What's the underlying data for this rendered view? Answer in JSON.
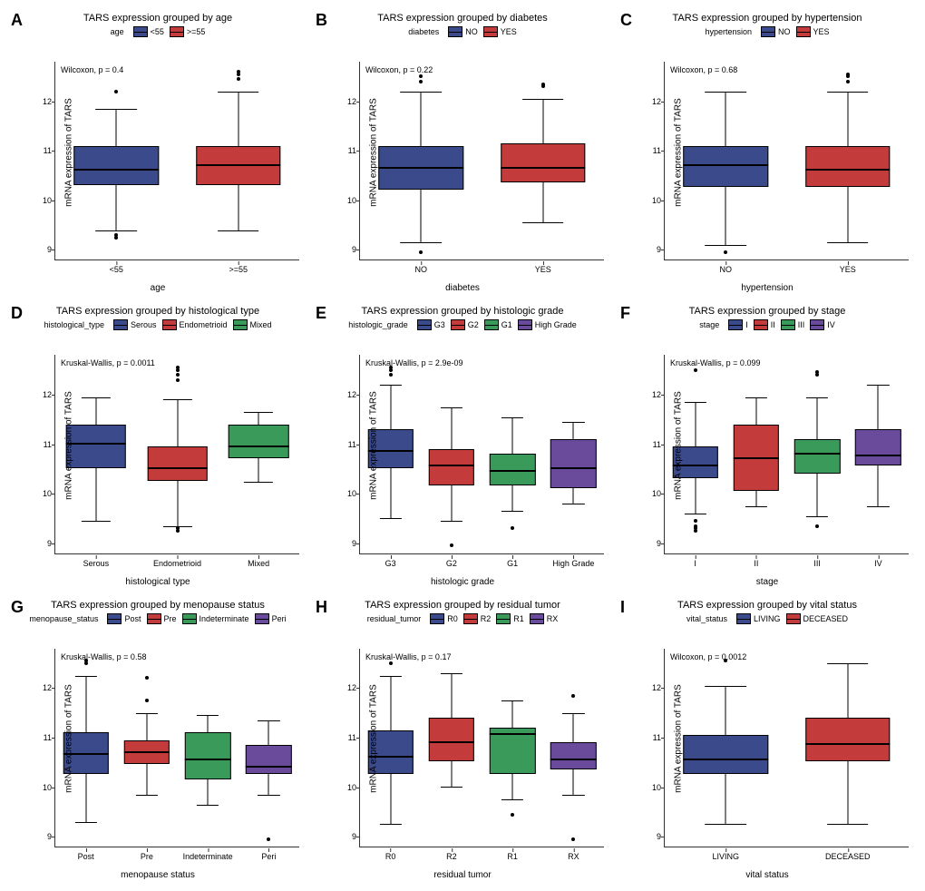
{
  "colors": {
    "c1": "#3a4a8a",
    "c2": "#c43b3b",
    "c3": "#3a9a5a",
    "c4": "#6a4a9a"
  },
  "ylabel": "mRNA expression of TARS",
  "ylim": [
    8.8,
    12.8
  ],
  "yticks": [
    9,
    10,
    11,
    12
  ],
  "panels": [
    {
      "letter": "A",
      "title": "TARS expression grouped by age",
      "legend_label": "age",
      "xlabel": "age",
      "stat": "Wilcoxon, p = 0.4",
      "groups": [
        {
          "label": "<55",
          "color": "c1",
          "q1": 10.35,
          "med": 10.65,
          "q3": 11.1,
          "lw": 9.4,
          "uw": 11.85,
          "out": [
            9.25,
            9.3,
            12.2
          ]
        },
        {
          "label": ">=55",
          "color": "c2",
          "q1": 10.35,
          "med": 10.75,
          "q3": 11.1,
          "lw": 9.4,
          "uw": 12.2,
          "out": [
            12.45,
            12.55,
            12.6
          ]
        }
      ]
    },
    {
      "letter": "B",
      "title": "TARS expression grouped by diabetes",
      "legend_label": "diabetes",
      "xlabel": "diabetes",
      "stat": "Wilcoxon, p = 0.22",
      "groups": [
        {
          "label": "NO",
          "color": "c1",
          "q1": 10.25,
          "med": 10.7,
          "q3": 11.1,
          "lw": 9.15,
          "uw": 12.2,
          "out": [
            8.95,
            12.4,
            12.5
          ]
        },
        {
          "label": "YES",
          "color": "c2",
          "q1": 10.4,
          "med": 10.7,
          "q3": 11.15,
          "lw": 9.55,
          "uw": 12.05,
          "out": [
            12.3,
            12.35
          ]
        }
      ]
    },
    {
      "letter": "C",
      "title": "TARS expression grouped by hypertension",
      "legend_label": "hypertension",
      "xlabel": "hypertension",
      "stat": "Wilcoxon, p = 0.68",
      "groups": [
        {
          "label": "NO",
          "color": "c1",
          "q1": 10.3,
          "med": 10.75,
          "q3": 11.1,
          "lw": 9.1,
          "uw": 12.2,
          "out": [
            8.95
          ]
        },
        {
          "label": "YES",
          "color": "c2",
          "q1": 10.3,
          "med": 10.65,
          "q3": 11.1,
          "lw": 9.15,
          "uw": 12.2,
          "out": [
            12.4,
            12.5,
            12.55
          ]
        }
      ]
    },
    {
      "letter": "D",
      "title": "TARS expression grouped by histological type",
      "legend_label": "histological_type",
      "xlabel": "histological type",
      "stat": "Kruskal-Wallis, p = 0.0011",
      "groups": [
        {
          "label": "Serous",
          "color": "c1",
          "q1": 10.55,
          "med": 11.05,
          "q3": 11.4,
          "lw": 9.45,
          "uw": 11.95,
          "out": []
        },
        {
          "label": "Endometrioid",
          "color": "c2",
          "q1": 10.3,
          "med": 10.55,
          "q3": 10.95,
          "lw": 9.35,
          "uw": 11.9,
          "out": [
            9.25,
            9.3,
            12.3,
            12.4,
            12.5,
            12.55
          ]
        },
        {
          "label": "Mixed",
          "color": "c3",
          "q1": 10.75,
          "med": 11.0,
          "q3": 11.4,
          "lw": 10.25,
          "uw": 11.65,
          "out": []
        }
      ]
    },
    {
      "letter": "E",
      "title": "TARS expression grouped by histologic grade",
      "legend_label": "histologic_grade",
      "xlabel": "histologic grade",
      "stat": "Kruskal-Wallis, p = 2.9e-09",
      "groups": [
        {
          "label": "G3",
          "color": "c1",
          "q1": 10.55,
          "med": 10.9,
          "q3": 11.3,
          "lw": 9.5,
          "uw": 12.2,
          "out": [
            12.4,
            12.5,
            12.55
          ]
        },
        {
          "label": "G2",
          "color": "c2",
          "q1": 10.2,
          "med": 10.6,
          "q3": 10.9,
          "lw": 9.45,
          "uw": 11.75,
          "out": [
            8.95
          ]
        },
        {
          "label": "G1",
          "color": "c3",
          "q1": 10.2,
          "med": 10.5,
          "q3": 10.8,
          "lw": 9.65,
          "uw": 11.55,
          "out": [
            9.3
          ]
        },
        {
          "label": "High Grade",
          "color": "c4",
          "q1": 10.15,
          "med": 10.55,
          "q3": 11.1,
          "lw": 9.8,
          "uw": 11.45,
          "out": []
        }
      ]
    },
    {
      "letter": "F",
      "title": "TARS expression grouped by stage",
      "legend_label": "stage",
      "xlabel": "stage",
      "stat": "Kruskal-Wallis, p = 0.099",
      "groups": [
        {
          "label": "I",
          "color": "c1",
          "q1": 10.35,
          "med": 10.6,
          "q3": 10.95,
          "lw": 9.6,
          "uw": 11.85,
          "out": [
            9.25,
            9.3,
            9.35,
            9.45,
            12.5
          ]
        },
        {
          "label": "II",
          "color": "c2",
          "q1": 10.1,
          "med": 10.75,
          "q3": 11.4,
          "lw": 9.75,
          "uw": 11.95,
          "out": []
        },
        {
          "label": "III",
          "color": "c3",
          "q1": 10.45,
          "med": 10.85,
          "q3": 11.1,
          "lw": 9.55,
          "uw": 11.95,
          "out": [
            9.35,
            12.4,
            12.45
          ]
        },
        {
          "label": "IV",
          "color": "c4",
          "q1": 10.6,
          "med": 10.8,
          "q3": 11.3,
          "lw": 9.75,
          "uw": 12.2,
          "out": []
        }
      ]
    },
    {
      "letter": "G",
      "title": "TARS expression grouped by menopause status",
      "legend_label": "menopause_status",
      "xlabel": "menopause status",
      "stat": "Kruskal-Wallis, p = 0.58",
      "groups": [
        {
          "label": "Post",
          "color": "c1",
          "q1": 10.3,
          "med": 10.7,
          "q3": 11.1,
          "lw": 9.3,
          "uw": 12.25,
          "out": [
            12.5,
            12.55
          ]
        },
        {
          "label": "Pre",
          "color": "c2",
          "q1": 10.5,
          "med": 10.75,
          "q3": 10.95,
          "lw": 9.85,
          "uw": 11.5,
          "out": [
            11.75,
            12.2
          ]
        },
        {
          "label": "Indeterminate",
          "color": "c3",
          "q1": 10.2,
          "med": 10.6,
          "q3": 11.1,
          "lw": 9.65,
          "uw": 11.45,
          "out": []
        },
        {
          "label": "Peri",
          "color": "c4",
          "q1": 10.3,
          "med": 10.45,
          "q3": 10.85,
          "lw": 9.85,
          "uw": 11.35,
          "out": [
            8.95
          ]
        }
      ]
    },
    {
      "letter": "H",
      "title": "TARS expression grouped by residual tumor",
      "legend_label": "residual_tumor",
      "xlabel": "residual tumor",
      "stat": "Kruskal-Wallis, p = 0.17",
      "groups": [
        {
          "label": "R0",
          "color": "c1",
          "q1": 10.3,
          "med": 10.65,
          "q3": 11.15,
          "lw": 9.25,
          "uw": 12.25,
          "out": [
            12.5
          ]
        },
        {
          "label": "R2",
          "color": "c2",
          "q1": 10.55,
          "med": 10.95,
          "q3": 11.4,
          "lw": 10.0,
          "uw": 12.3,
          "out": []
        },
        {
          "label": "R1",
          "color": "c3",
          "q1": 10.3,
          "med": 11.1,
          "q3": 11.2,
          "lw": 9.75,
          "uw": 11.75,
          "out": [
            9.45
          ]
        },
        {
          "label": "RX",
          "color": "c4",
          "q1": 10.4,
          "med": 10.6,
          "q3": 10.9,
          "lw": 9.85,
          "uw": 11.5,
          "out": [
            8.95,
            11.85
          ]
        }
      ]
    },
    {
      "letter": "I",
      "title": "TARS expression grouped by vital status",
      "legend_label": "vital_status",
      "xlabel": "vital status",
      "stat": "Wilcoxon, p = 0.0012",
      "groups": [
        {
          "label": "LIVING",
          "color": "c1",
          "q1": 10.3,
          "med": 10.6,
          "q3": 11.05,
          "lw": 9.25,
          "uw": 12.05,
          "out": [
            12.55
          ]
        },
        {
          "label": "DECEASED",
          "color": "c2",
          "q1": 10.55,
          "med": 10.9,
          "q3": 11.4,
          "lw": 9.25,
          "uw": 12.5,
          "out": []
        }
      ]
    }
  ]
}
